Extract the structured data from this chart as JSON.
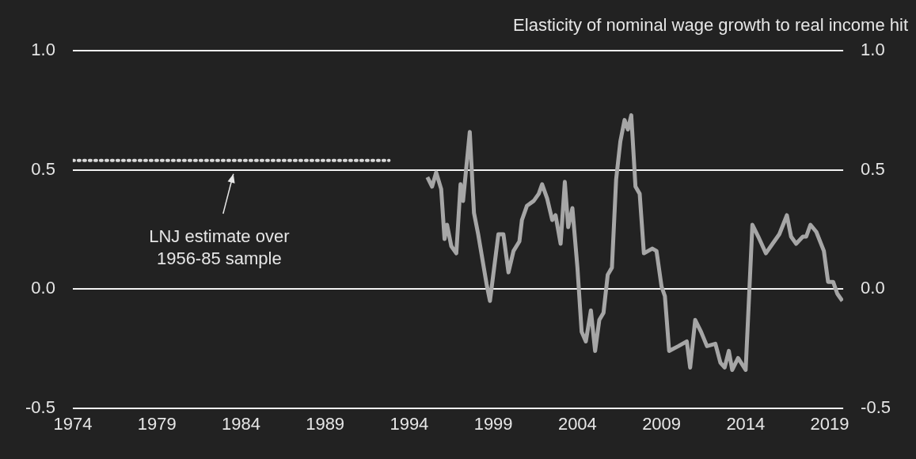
{
  "chart_data": {
    "type": "line",
    "title": "Elasticity of nominal wage growth to real income hit",
    "xlim": [
      1974,
      2019.8
    ],
    "xticks": [
      1974,
      1979,
      1984,
      1989,
      1994,
      1999,
      2004,
      2009,
      2014,
      2019
    ],
    "ylim": [
      -0.5,
      1.0
    ],
    "yticks": [
      {
        "value": -0.5,
        "label": "-0.5"
      },
      {
        "value": 0,
        "label": "0.0"
      },
      {
        "value": 0.5,
        "label": "0.5"
      },
      {
        "value": 1,
        "label": "1.0"
      }
    ],
    "y2lim": [
      -0.5,
      1.0
    ],
    "y2ticks": [
      {
        "value": -0.5,
        "label": "-0.5"
      },
      {
        "value": 0,
        "label": "0.0"
      },
      {
        "value": 0.5,
        "label": "0.5"
      },
      {
        "value": 1,
        "label": "1.0"
      }
    ],
    "grid": "y",
    "legend": false,
    "marker": "none",
    "series": [
      {
        "color": "#a6a6a6",
        "line_style": "solid",
        "x": [
          1995.08,
          1995.36,
          1995.6,
          1995.9,
          1996.1,
          1996.25,
          1996.5,
          1996.8,
          1997.05,
          1997.2,
          1997.6,
          1997.85,
          1998.1,
          1998.6,
          1998.8,
          1999.05,
          1999.3,
          1999.6,
          1999.9,
          2000.2,
          2000.55,
          2000.7,
          2001.0,
          2001.4,
          2001.7,
          2001.9,
          2002.2,
          2002.5,
          2002.7,
          2003.0,
          2003.25,
          2003.45,
          2003.7,
          2004.0,
          2004.25,
          2004.5,
          2004.8,
          2005.05,
          2005.3,
          2005.55,
          2005.8,
          2006.05,
          2006.3,
          2006.55,
          2006.8,
          2007.0,
          2007.2,
          2007.45,
          2007.7,
          2007.95,
          2008.45,
          2008.7,
          2009.0,
          2009.2,
          2009.45,
          2010.0,
          2010.5,
          2010.7,
          2011.0,
          2011.35,
          2011.7,
          2012.2,
          2012.5,
          2012.75,
          2013.0,
          2013.2,
          2013.55,
          2014.0,
          2014.4,
          2014.75,
          2015.2,
          2015.6,
          2016.0,
          2016.45,
          2016.7,
          2017.0,
          2017.4,
          2017.6,
          2017.85,
          2018.2,
          2018.65,
          2018.9,
          2019.2,
          2019.45,
          2019.75
        ],
        "values": [
          0.47,
          0.43,
          0.49,
          0.42,
          0.21,
          0.27,
          0.18,
          0.15,
          0.44,
          0.37,
          0.66,
          0.32,
          0.23,
          0.02,
          -0.05,
          0.09,
          0.23,
          0.23,
          0.07,
          0.16,
          0.2,
          0.29,
          0.35,
          0.37,
          0.4,
          0.44,
          0.38,
          0.29,
          0.31,
          0.19,
          0.45,
          0.26,
          0.34,
          0.09,
          -0.18,
          -0.22,
          -0.09,
          -0.26,
          -0.13,
          -0.1,
          0.06,
          0.09,
          0.46,
          0.62,
          0.71,
          0.67,
          0.73,
          0.43,
          0.4,
          0.15,
          0.17,
          0.16,
          0.01,
          -0.03,
          -0.26,
          -0.24,
          -0.22,
          -0.33,
          -0.13,
          -0.18,
          -0.24,
          -0.23,
          -0.31,
          -0.33,
          -0.26,
          -0.34,
          -0.29,
          -0.34,
          0.27,
          0.22,
          0.15,
          0.19,
          0.23,
          0.31,
          0.22,
          0.19,
          0.22,
          0.22,
          0.27,
          0.24,
          0.16,
          0.03,
          0.03,
          -0.02,
          -0.05
        ]
      },
      {
        "color": "#d9d9d9",
        "line_style": "dotted",
        "x": [
          1974,
          1992.8
        ],
        "values": [
          0.54,
          0.54
        ]
      }
    ],
    "annotations": [
      "LNJ estimate over\n1956-85 sample"
    ]
  }
}
